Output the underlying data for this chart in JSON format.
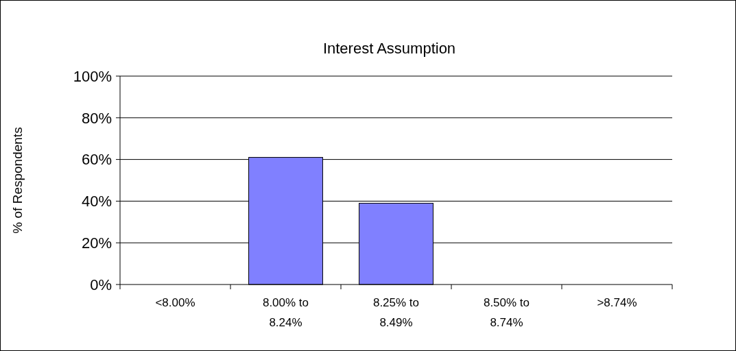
{
  "chart_data": {
    "type": "bar",
    "title": "Interest Assumption",
    "ylabel": "% of Respondents",
    "categories": [
      "<8.00%",
      "8.00% to\n8.24%",
      "8.25% to\n8.49%",
      "8.50% to\n8.74%",
      ">8.74%"
    ],
    "values": [
      0,
      61,
      39,
      0,
      0
    ],
    "color": "#8080ff",
    "ylim": [
      0,
      100
    ],
    "yticks": [
      {
        "value": 0,
        "label": "0%"
      },
      {
        "value": 20,
        "label": "20%"
      },
      {
        "value": 40,
        "label": "40%"
      },
      {
        "value": 60,
        "label": "60%"
      },
      {
        "value": 80,
        "label": "80%"
      },
      {
        "value": 100,
        "label": "100%"
      }
    ],
    "grid": "y"
  }
}
